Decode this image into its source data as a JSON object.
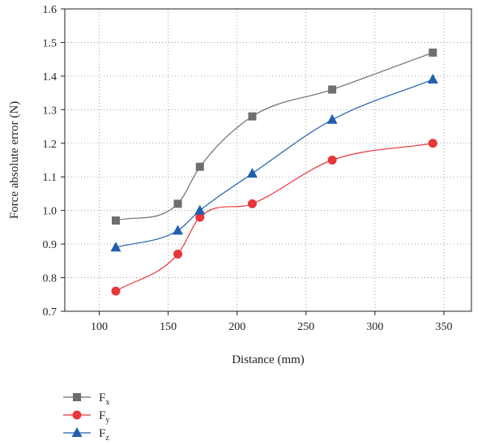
{
  "chart_data": {
    "type": "line",
    "title": "",
    "xlabel": "Distance (mm)",
    "ylabel": "Force absolute error (N)",
    "xlim": [
      75,
      370
    ],
    "ylim": [
      0.7,
      1.6
    ],
    "xticks": [
      "100",
      "150",
      "200",
      "250",
      "300",
      "350"
    ],
    "yticks": [
      "0.7",
      "0.8",
      "0.9",
      "1.0",
      "1.1",
      "1.2",
      "1.3",
      "1.4",
      "1.5",
      "1.6"
    ],
    "grid": true,
    "grid_style": "dotted",
    "legend_position": "bottom-left",
    "x": [
      112,
      157,
      173,
      211,
      269,
      342
    ],
    "series": [
      {
        "name": "Fx",
        "label_main": "F",
        "label_sub": "x",
        "color": "#6d6e71",
        "marker": "square",
        "values": [
          0.97,
          1.02,
          1.13,
          1.28,
          1.36,
          1.47
        ]
      },
      {
        "name": "Fy",
        "label_main": "F",
        "label_sub": "y",
        "color": "#e8363a",
        "marker": "circle",
        "values": [
          0.76,
          0.87,
          0.98,
          1.02,
          1.15,
          1.2
        ]
      },
      {
        "name": "Fz",
        "label_main": "F",
        "label_sub": "z",
        "color": "#1f5fae",
        "marker": "triangle",
        "values": [
          0.89,
          0.94,
          1.0,
          1.11,
          1.27,
          1.39
        ]
      }
    ]
  }
}
